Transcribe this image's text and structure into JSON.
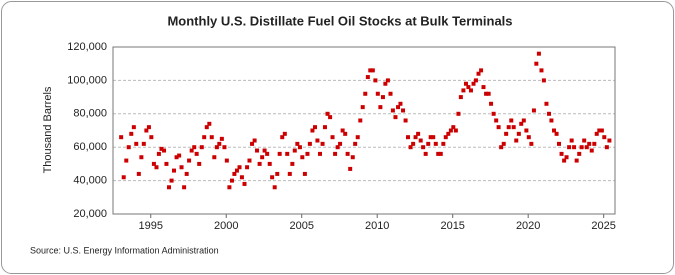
{
  "chart_data": {
    "type": "scatter",
    "title": "Monthly U.S. Distillate Fuel Oil Stocks at Bulk Terminals",
    "y_label": "Thousand Barrels",
    "source": "Source: U.S. Energy Information Administration",
    "xlim": [
      1992.5,
      2025.75
    ],
    "xticks": [
      1995,
      2000,
      2005,
      2010,
      2015,
      2020,
      2025
    ],
    "ylim": [
      20000,
      120000
    ],
    "yticks": [
      {
        "value": 20000,
        "label": "20,000"
      },
      {
        "value": 40000,
        "label": "40,000"
      },
      {
        "value": 60000,
        "label": "60,000"
      },
      {
        "value": 80000,
        "label": "80,000"
      },
      {
        "value": 100000,
        "label": "100,000"
      },
      {
        "value": 120000,
        "label": "120,000"
      }
    ],
    "grid": true,
    "x": [
      1993.04,
      1993.21,
      1993.38,
      1993.54,
      1993.71,
      1993.88,
      1994.04,
      1994.21,
      1994.38,
      1994.54,
      1994.71,
      1994.88,
      1995.04,
      1995.21,
      1995.38,
      1995.54,
      1995.71,
      1995.88,
      1996.04,
      1996.21,
      1996.38,
      1996.54,
      1996.71,
      1996.88,
      1997.04,
      1997.21,
      1997.38,
      1997.54,
      1997.71,
      1997.88,
      1998.04,
      1998.21,
      1998.38,
      1998.54,
      1998.71,
      1998.88,
      1999.04,
      1999.21,
      1999.38,
      1999.54,
      1999.71,
      1999.88,
      2000.04,
      2000.21,
      2000.38,
      2000.54,
      2000.71,
      2000.88,
      2001.04,
      2001.21,
      2001.38,
      2001.54,
      2001.71,
      2001.88,
      2002.04,
      2002.21,
      2002.38,
      2002.54,
      2002.71,
      2002.88,
      2003.04,
      2003.21,
      2003.38,
      2003.54,
      2003.71,
      2003.88,
      2004.04,
      2004.21,
      2004.38,
      2004.54,
      2004.71,
      2004.88,
      2005.04,
      2005.21,
      2005.38,
      2005.54,
      2005.71,
      2005.88,
      2006.04,
      2006.21,
      2006.38,
      2006.54,
      2006.71,
      2006.88,
      2007.04,
      2007.21,
      2007.38,
      2007.54,
      2007.71,
      2007.88,
      2008.04,
      2008.21,
      2008.38,
      2008.54,
      2008.71,
      2008.88,
      2009.04,
      2009.21,
      2009.38,
      2009.54,
      2009.71,
      2009.88,
      2010.04,
      2010.21,
      2010.38,
      2010.54,
      2010.71,
      2010.88,
      2011.04,
      2011.21,
      2011.38,
      2011.54,
      2011.71,
      2011.88,
      2012.04,
      2012.21,
      2012.38,
      2012.54,
      2012.71,
      2012.88,
      2013.04,
      2013.21,
      2013.38,
      2013.54,
      2013.71,
      2013.88,
      2014.04,
      2014.21,
      2014.38,
      2014.54,
      2014.71,
      2014.88,
      2015.04,
      2015.21,
      2015.38,
      2015.54,
      2015.71,
      2015.88,
      2016.04,
      2016.21,
      2016.38,
      2016.54,
      2016.71,
      2016.88,
      2017.04,
      2017.21,
      2017.38,
      2017.54,
      2017.71,
      2017.88,
      2018.04,
      2018.21,
      2018.38,
      2018.54,
      2018.71,
      2018.88,
      2019.04,
      2019.21,
      2019.38,
      2019.54,
      2019.71,
      2019.88,
      2020.04,
      2020.21,
      2020.38,
      2020.54,
      2020.71,
      2020.88,
      2021.04,
      2021.21,
      2021.38,
      2021.54,
      2021.71,
      2021.88,
      2022.04,
      2022.21,
      2022.38,
      2022.54,
      2022.71,
      2022.88,
      2023.04,
      2023.21,
      2023.38,
      2023.54,
      2023.71,
      2023.88,
      2024.04,
      2024.21,
      2024.38,
      2024.54,
      2024.71,
      2024.88,
      2025.04,
      2025.21,
      2025.38
    ],
    "series": [
      {
        "color": "#cc0000",
        "values": [
          66000,
          42000,
          52000,
          60000,
          68000,
          72000,
          62000,
          44000,
          54000,
          62000,
          70000,
          72000,
          66000,
          50000,
          48000,
          56000,
          59000,
          58000,
          50000,
          36000,
          40000,
          46000,
          54000,
          55000,
          48000,
          36000,
          44000,
          52000,
          58000,
          60000,
          56000,
          50000,
          60000,
          66000,
          72000,
          74000,
          66000,
          54000,
          60000,
          62000,
          65000,
          60000,
          52000,
          36000,
          40000,
          44000,
          46000,
          48000,
          42000,
          38000,
          48000,
          52000,
          62000,
          64000,
          58000,
          50000,
          54000,
          58000,
          56000,
          50000,
          42000,
          36000,
          44000,
          56000,
          66000,
          68000,
          56000,
          44000,
          50000,
          58000,
          62000,
          60000,
          54000,
          44000,
          56000,
          62000,
          70000,
          72000,
          64000,
          56000,
          62000,
          72000,
          80000,
          78000,
          66000,
          56000,
          60000,
          62000,
          70000,
          68000,
          56000,
          47000,
          54000,
          62000,
          66000,
          76000,
          84000,
          92000,
          102000,
          106000,
          106000,
          100000,
          92000,
          84000,
          90000,
          98000,
          100000,
          92000,
          82000,
          78000,
          84000,
          86000,
          82000,
          76000,
          66000,
          60000,
          62000,
          66000,
          68000,
          64000,
          60000,
          56000,
          62000,
          66000,
          66000,
          62000,
          56000,
          56000,
          62000,
          66000,
          68000,
          70000,
          72000,
          70000,
          80000,
          90000,
          94000,
          98000,
          96000,
          94000,
          98000,
          100000,
          104000,
          106000,
          96000,
          92000,
          92000,
          86000,
          80000,
          76000,
          72000,
          60000,
          62000,
          68000,
          72000,
          76000,
          72000,
          64000,
          68000,
          74000,
          76000,
          70000,
          66000,
          62000,
          82000,
          110000,
          116000,
          106000,
          100000,
          86000,
          80000,
          76000,
          70000,
          68000,
          62000,
          56000,
          52000,
          54000,
          60000,
          64000,
          60000,
          52000,
          56000,
          60000,
          64000,
          60000,
          62000,
          58000,
          62000,
          68000,
          70000,
          70000,
          66000,
          60000,
          64000
        ]
      }
    ]
  }
}
